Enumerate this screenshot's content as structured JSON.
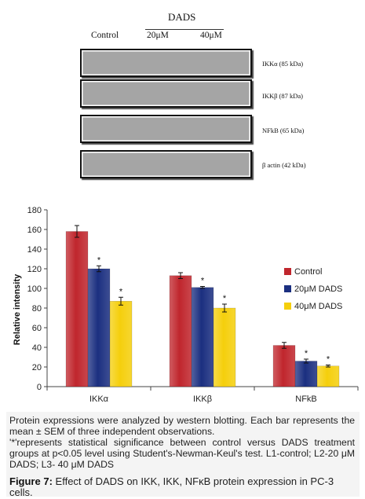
{
  "blot": {
    "treatment_header": "DADS",
    "lanes": [
      "Control",
      "20μM",
      "40μM"
    ],
    "rows": [
      {
        "label": "IKKα (85 kDa)"
      },
      {
        "label": "IKKβ (87 kDa)"
      },
      {
        "label": "NFkB (65 kDa)"
      },
      {
        "label": "β actin (42 kDa)"
      }
    ]
  },
  "chart_data": {
    "type": "bar",
    "categories": [
      "IKKα",
      "IKKβ",
      "NFkB"
    ],
    "ylabel": "Relative intensity",
    "xlabel": "",
    "ylim": [
      0,
      180
    ],
    "yticks": [
      0,
      20,
      40,
      60,
      80,
      100,
      120,
      140,
      160,
      180
    ],
    "grid": false,
    "legend_position": "right",
    "significance_marker": "*",
    "series": [
      {
        "name": "Control",
        "color": "#c0262d",
        "values": [
          158,
          113,
          42
        ],
        "errors": [
          6,
          3,
          3
        ],
        "significant": [
          false,
          false,
          false
        ]
      },
      {
        "name": "20μM DADS",
        "color": "#1b2f80",
        "values": [
          120,
          101,
          26
        ],
        "errors": [
          3,
          1,
          2
        ],
        "significant": [
          true,
          true,
          true
        ]
      },
      {
        "name": "40μM DADS",
        "color": "#f5cf0c",
        "values": [
          87,
          80,
          21
        ],
        "errors": [
          4,
          4,
          1
        ],
        "significant": [
          true,
          true,
          true
        ]
      }
    ]
  },
  "caption": {
    "text1": "Protein expressions were analyzed by western blotting. Each bar represents the mean ± SEM of three independent observations.",
    "text2": "'*'represents statistical significance between control versus DADS treatment groups at p<0.05 level using Student's-Newman-Keul's test. L1-control; L2-20 μM DADS; L3- 40 μM DADS",
    "figure_label": "Figure 7:",
    "figure_title": "Effect of DADS on IKK, IKK, NFκB protein expression in PC-3 cells."
  }
}
